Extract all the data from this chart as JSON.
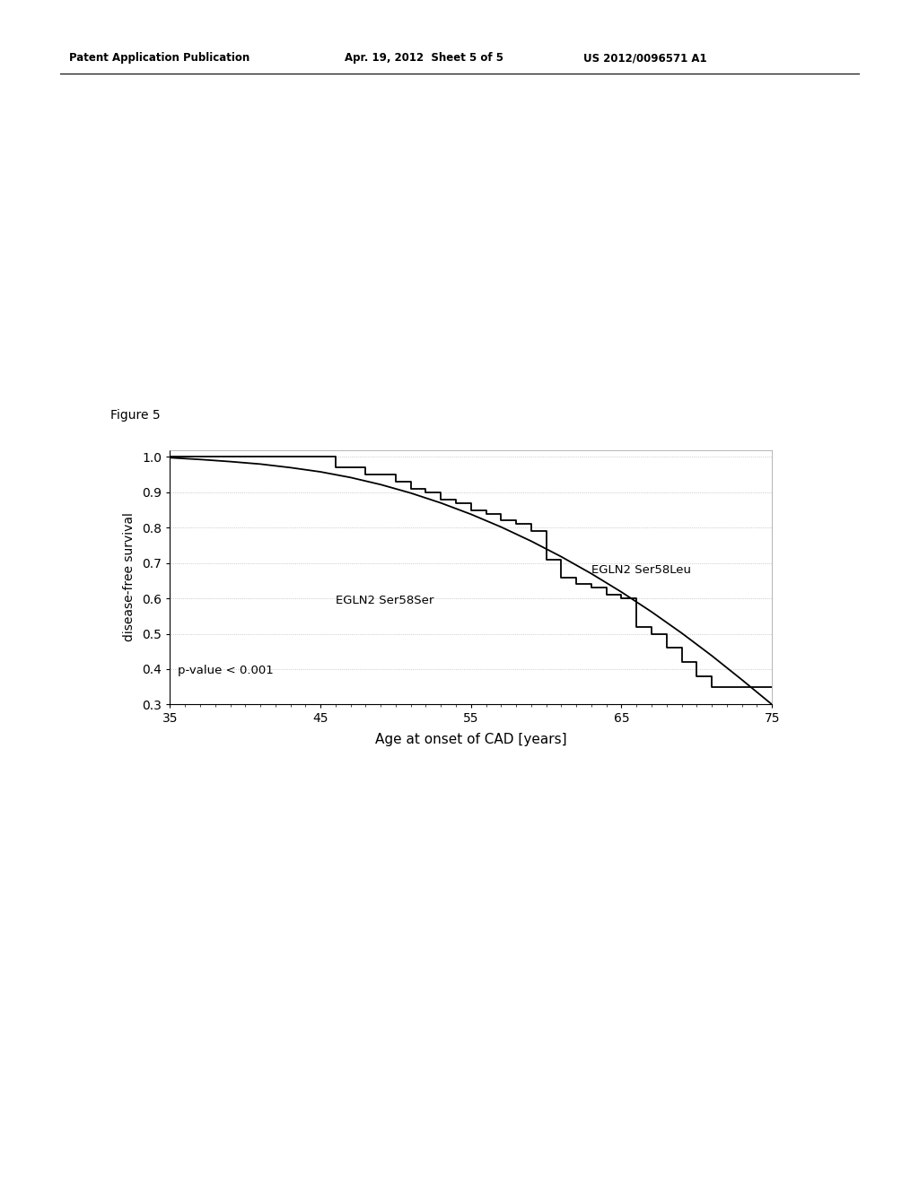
{
  "title": "Figure 5",
  "xlabel": "Age at onset of CAD [years]",
  "ylabel": "disease-free survival",
  "xlim": [
    35,
    75
  ],
  "ylim": [
    0.3,
    1.02
  ],
  "yticks": [
    0.3,
    0.4,
    0.5,
    0.6,
    0.7,
    0.8,
    0.9,
    1.0
  ],
  "xticks": [
    35,
    45,
    55,
    65,
    75
  ],
  "annotation": "p-value < 0.001",
  "label_ser58leu": "EGLN2 Ser58Leu",
  "label_ser58ser": "EGLN2 Ser58Ser",
  "background_color": "#ffffff",
  "line_color": "#000000",
  "ser58leu_x": [
    35,
    35,
    46,
    46,
    48,
    48,
    50,
    50,
    51,
    51,
    52,
    52,
    53,
    53,
    54,
    54,
    55,
    55,
    56,
    56,
    57,
    57,
    58,
    58,
    59,
    59,
    60,
    60,
    61,
    61,
    62,
    62,
    63,
    63,
    64,
    64,
    65,
    65,
    66,
    66,
    67,
    67,
    68,
    68,
    69,
    69,
    70,
    70,
    71,
    71,
    75
  ],
  "ser58leu_y": [
    1.0,
    1.0,
    1.0,
    0.97,
    0.97,
    0.95,
    0.95,
    0.93,
    0.93,
    0.91,
    0.91,
    0.9,
    0.9,
    0.88,
    0.88,
    0.87,
    0.87,
    0.85,
    0.85,
    0.84,
    0.84,
    0.82,
    0.82,
    0.81,
    0.81,
    0.79,
    0.79,
    0.71,
    0.71,
    0.66,
    0.66,
    0.64,
    0.64,
    0.63,
    0.63,
    0.61,
    0.61,
    0.6,
    0.6,
    0.52,
    0.52,
    0.5,
    0.5,
    0.46,
    0.46,
    0.42,
    0.42,
    0.38,
    0.38,
    0.35,
    0.35
  ],
  "ser58ser_x": [
    35,
    37,
    39,
    41,
    43,
    45,
    47,
    49,
    51,
    53,
    55,
    57,
    59,
    61,
    63,
    65,
    67,
    69,
    71,
    73,
    75
  ],
  "ser58ser_y": [
    0.998,
    0.993,
    0.987,
    0.98,
    0.97,
    0.958,
    0.942,
    0.922,
    0.898,
    0.87,
    0.838,
    0.802,
    0.762,
    0.718,
    0.67,
    0.618,
    0.562,
    0.502,
    0.438,
    0.37,
    0.3
  ],
  "header_left": "Patent Application Publication",
  "header_mid": "Apr. 19, 2012  Sheet 5 of 5",
  "header_right": "US 2012/0096571 A1"
}
